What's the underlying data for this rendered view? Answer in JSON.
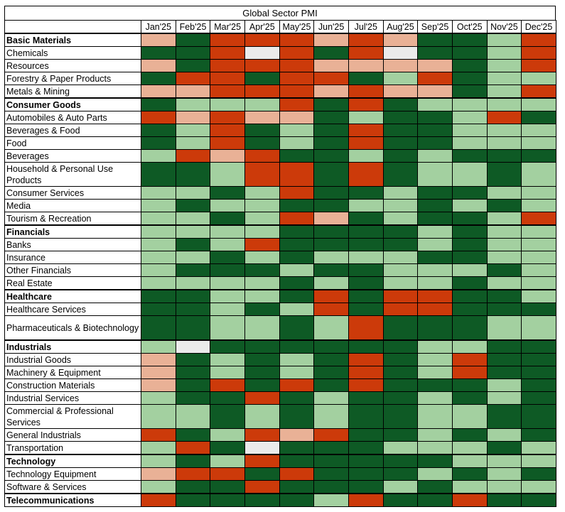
{
  "chart_data": {
    "type": "heatmap",
    "title": "Global Sector PMI",
    "columns": [
      "Jan'25",
      "Feb'25",
      "Mar'25",
      "Apr'25",
      "May'25",
      "Jun'25",
      "Jul'25",
      "Aug'25",
      "Sep'25",
      "Oct'25",
      "Nov'25",
      "Dec'25"
    ],
    "scale_colors": {
      "0": "#0e5a25",
      "1": "#a3d0a0",
      "2": "#e9b196",
      "3": "#cc3a0a",
      "4": "#ebebeb"
    },
    "rows": [
      {
        "label": "Basic Materials",
        "group": true,
        "lines": 1,
        "values": [
          2,
          0,
          3,
          3,
          3,
          2,
          3,
          2,
          0,
          0,
          1,
          3
        ]
      },
      {
        "label": "Chemicals",
        "group": false,
        "lines": 1,
        "values": [
          0,
          0,
          3,
          4,
          3,
          0,
          3,
          4,
          0,
          0,
          1,
          3
        ]
      },
      {
        "label": "Resources",
        "group": false,
        "lines": 1,
        "values": [
          2,
          0,
          3,
          3,
          3,
          2,
          2,
          2,
          2,
          0,
          1,
          3
        ]
      },
      {
        "label": "Forestry & Paper Products",
        "group": false,
        "lines": 1,
        "values": [
          0,
          3,
          3,
          0,
          3,
          3,
          0,
          1,
          3,
          0,
          1,
          1
        ]
      },
      {
        "label": "Metals & Mining",
        "group": false,
        "lines": 1,
        "values": [
          2,
          2,
          3,
          3,
          3,
          2,
          3,
          2,
          2,
          0,
          1,
          3
        ]
      },
      {
        "label": "Consumer Goods",
        "group": true,
        "lines": 1,
        "values": [
          0,
          1,
          1,
          1,
          3,
          0,
          3,
          0,
          1,
          1,
          1,
          1
        ]
      },
      {
        "label": "Automobiles & Auto Parts",
        "group": false,
        "lines": 1,
        "values": [
          3,
          2,
          3,
          2,
          2,
          0,
          1,
          0,
          0,
          1,
          3,
          0
        ]
      },
      {
        "label": "Beverages & Food",
        "group": false,
        "lines": 1,
        "values": [
          0,
          1,
          3,
          0,
          1,
          0,
          3,
          0,
          0,
          1,
          1,
          1
        ]
      },
      {
        "label": "Food",
        "group": false,
        "lines": 1,
        "values": [
          0,
          1,
          3,
          0,
          1,
          0,
          3,
          0,
          0,
          1,
          1,
          1
        ]
      },
      {
        "label": "Beverages",
        "group": false,
        "lines": 1,
        "values": [
          1,
          3,
          2,
          3,
          0,
          0,
          1,
          0,
          1,
          0,
          0,
          0
        ]
      },
      {
        "label": "Household & Personal Use Products",
        "group": false,
        "lines": 2,
        "values": [
          0,
          0,
          1,
          3,
          3,
          0,
          3,
          0,
          1,
          1,
          0,
          1
        ]
      },
      {
        "label": "Consumer Services",
        "group": false,
        "lines": 1,
        "values": [
          1,
          1,
          0,
          1,
          3,
          0,
          0,
          1,
          0,
          0,
          1,
          1
        ]
      },
      {
        "label": "Media",
        "group": false,
        "lines": 1,
        "values": [
          1,
          0,
          1,
          1,
          0,
          0,
          1,
          1,
          0,
          1,
          0,
          1
        ]
      },
      {
        "label": "Tourism & Recreation",
        "group": false,
        "lines": 1,
        "values": [
          1,
          1,
          0,
          1,
          3,
          2,
          0,
          1,
          0,
          0,
          1,
          3
        ]
      },
      {
        "label": "Financials",
        "group": true,
        "lines": 1,
        "values": [
          1,
          1,
          1,
          1,
          0,
          0,
          0,
          0,
          1,
          0,
          1,
          1
        ]
      },
      {
        "label": "Banks",
        "group": false,
        "lines": 1,
        "values": [
          1,
          0,
          1,
          3,
          0,
          0,
          0,
          0,
          1,
          0,
          1,
          1
        ]
      },
      {
        "label": "Insurance",
        "group": false,
        "lines": 1,
        "values": [
          1,
          1,
          0,
          1,
          0,
          1,
          1,
          1,
          0,
          0,
          1,
          1
        ]
      },
      {
        "label": "Other Financials",
        "group": false,
        "lines": 1,
        "values": [
          1,
          0,
          0,
          0,
          1,
          0,
          0,
          1,
          1,
          1,
          0,
          1
        ]
      },
      {
        "label": "Real Estate",
        "group": false,
        "lines": 1,
        "values": [
          1,
          1,
          1,
          1,
          0,
          1,
          0,
          1,
          1,
          0,
          1,
          1
        ]
      },
      {
        "label": "Healthcare",
        "group": true,
        "lines": 1,
        "values": [
          0,
          0,
          1,
          1,
          0,
          3,
          0,
          3,
          3,
          0,
          0,
          1
        ]
      },
      {
        "label": "Healthcare Services",
        "group": false,
        "lines": 1,
        "values": [
          0,
          0,
          1,
          0,
          1,
          3,
          0,
          3,
          3,
          0,
          0,
          0
        ]
      },
      {
        "label": "Pharmaceuticals & Biotechnology",
        "group": false,
        "lines": 2,
        "values": [
          0,
          0,
          1,
          1,
          0,
          1,
          3,
          0,
          0,
          0,
          1,
          1
        ]
      },
      {
        "label": "Industrials",
        "group": true,
        "lines": 1,
        "values": [
          1,
          4,
          0,
          0,
          0,
          0,
          0,
          0,
          1,
          1,
          0,
          0
        ]
      },
      {
        "label": "Industrial Goods",
        "group": false,
        "lines": 1,
        "values": [
          2,
          0,
          1,
          0,
          1,
          0,
          3,
          0,
          1,
          3,
          0,
          0
        ]
      },
      {
        "label": "Machinery & Equipment",
        "group": false,
        "lines": 1,
        "values": [
          2,
          0,
          1,
          0,
          1,
          0,
          3,
          0,
          1,
          3,
          0,
          0
        ]
      },
      {
        "label": "Construction Materials",
        "group": false,
        "lines": 1,
        "values": [
          2,
          0,
          3,
          0,
          3,
          0,
          3,
          0,
          0,
          0,
          1,
          0
        ]
      },
      {
        "label": "Industrial Services",
        "group": false,
        "lines": 1,
        "values": [
          1,
          0,
          0,
          3,
          0,
          1,
          0,
          0,
          1,
          0,
          1,
          0
        ]
      },
      {
        "label": "Commercial & Professional Services",
        "group": false,
        "lines": 2,
        "values": [
          1,
          1,
          0,
          1,
          0,
          1,
          0,
          0,
          1,
          1,
          0,
          0
        ]
      },
      {
        "label": "General Industrials",
        "group": false,
        "lines": 1,
        "values": [
          3,
          0,
          1,
          3,
          2,
          3,
          0,
          0,
          1,
          0,
          1,
          0
        ]
      },
      {
        "label": "Transportation",
        "group": false,
        "lines": 1,
        "values": [
          1,
          3,
          0,
          4,
          0,
          0,
          0,
          1,
          1,
          1,
          0,
          1
        ]
      },
      {
        "label": "Technology",
        "group": true,
        "lines": 1,
        "values": [
          1,
          0,
          1,
          3,
          0,
          0,
          0,
          0,
          0,
          1,
          1,
          1
        ]
      },
      {
        "label": "Technology Equipment",
        "group": false,
        "lines": 1,
        "values": [
          2,
          3,
          3,
          0,
          3,
          0,
          0,
          0,
          1,
          0,
          1,
          0
        ]
      },
      {
        "label": "Software & Services",
        "group": false,
        "lines": 1,
        "values": [
          1,
          0,
          0,
          3,
          0,
          0,
          0,
          1,
          0,
          1,
          1,
          1
        ]
      },
      {
        "label": "Telecommunications",
        "group": true,
        "lines": 1,
        "values": [
          3,
          0,
          0,
          0,
          0,
          1,
          3,
          0,
          0,
          3,
          0,
          0
        ]
      }
    ]
  }
}
